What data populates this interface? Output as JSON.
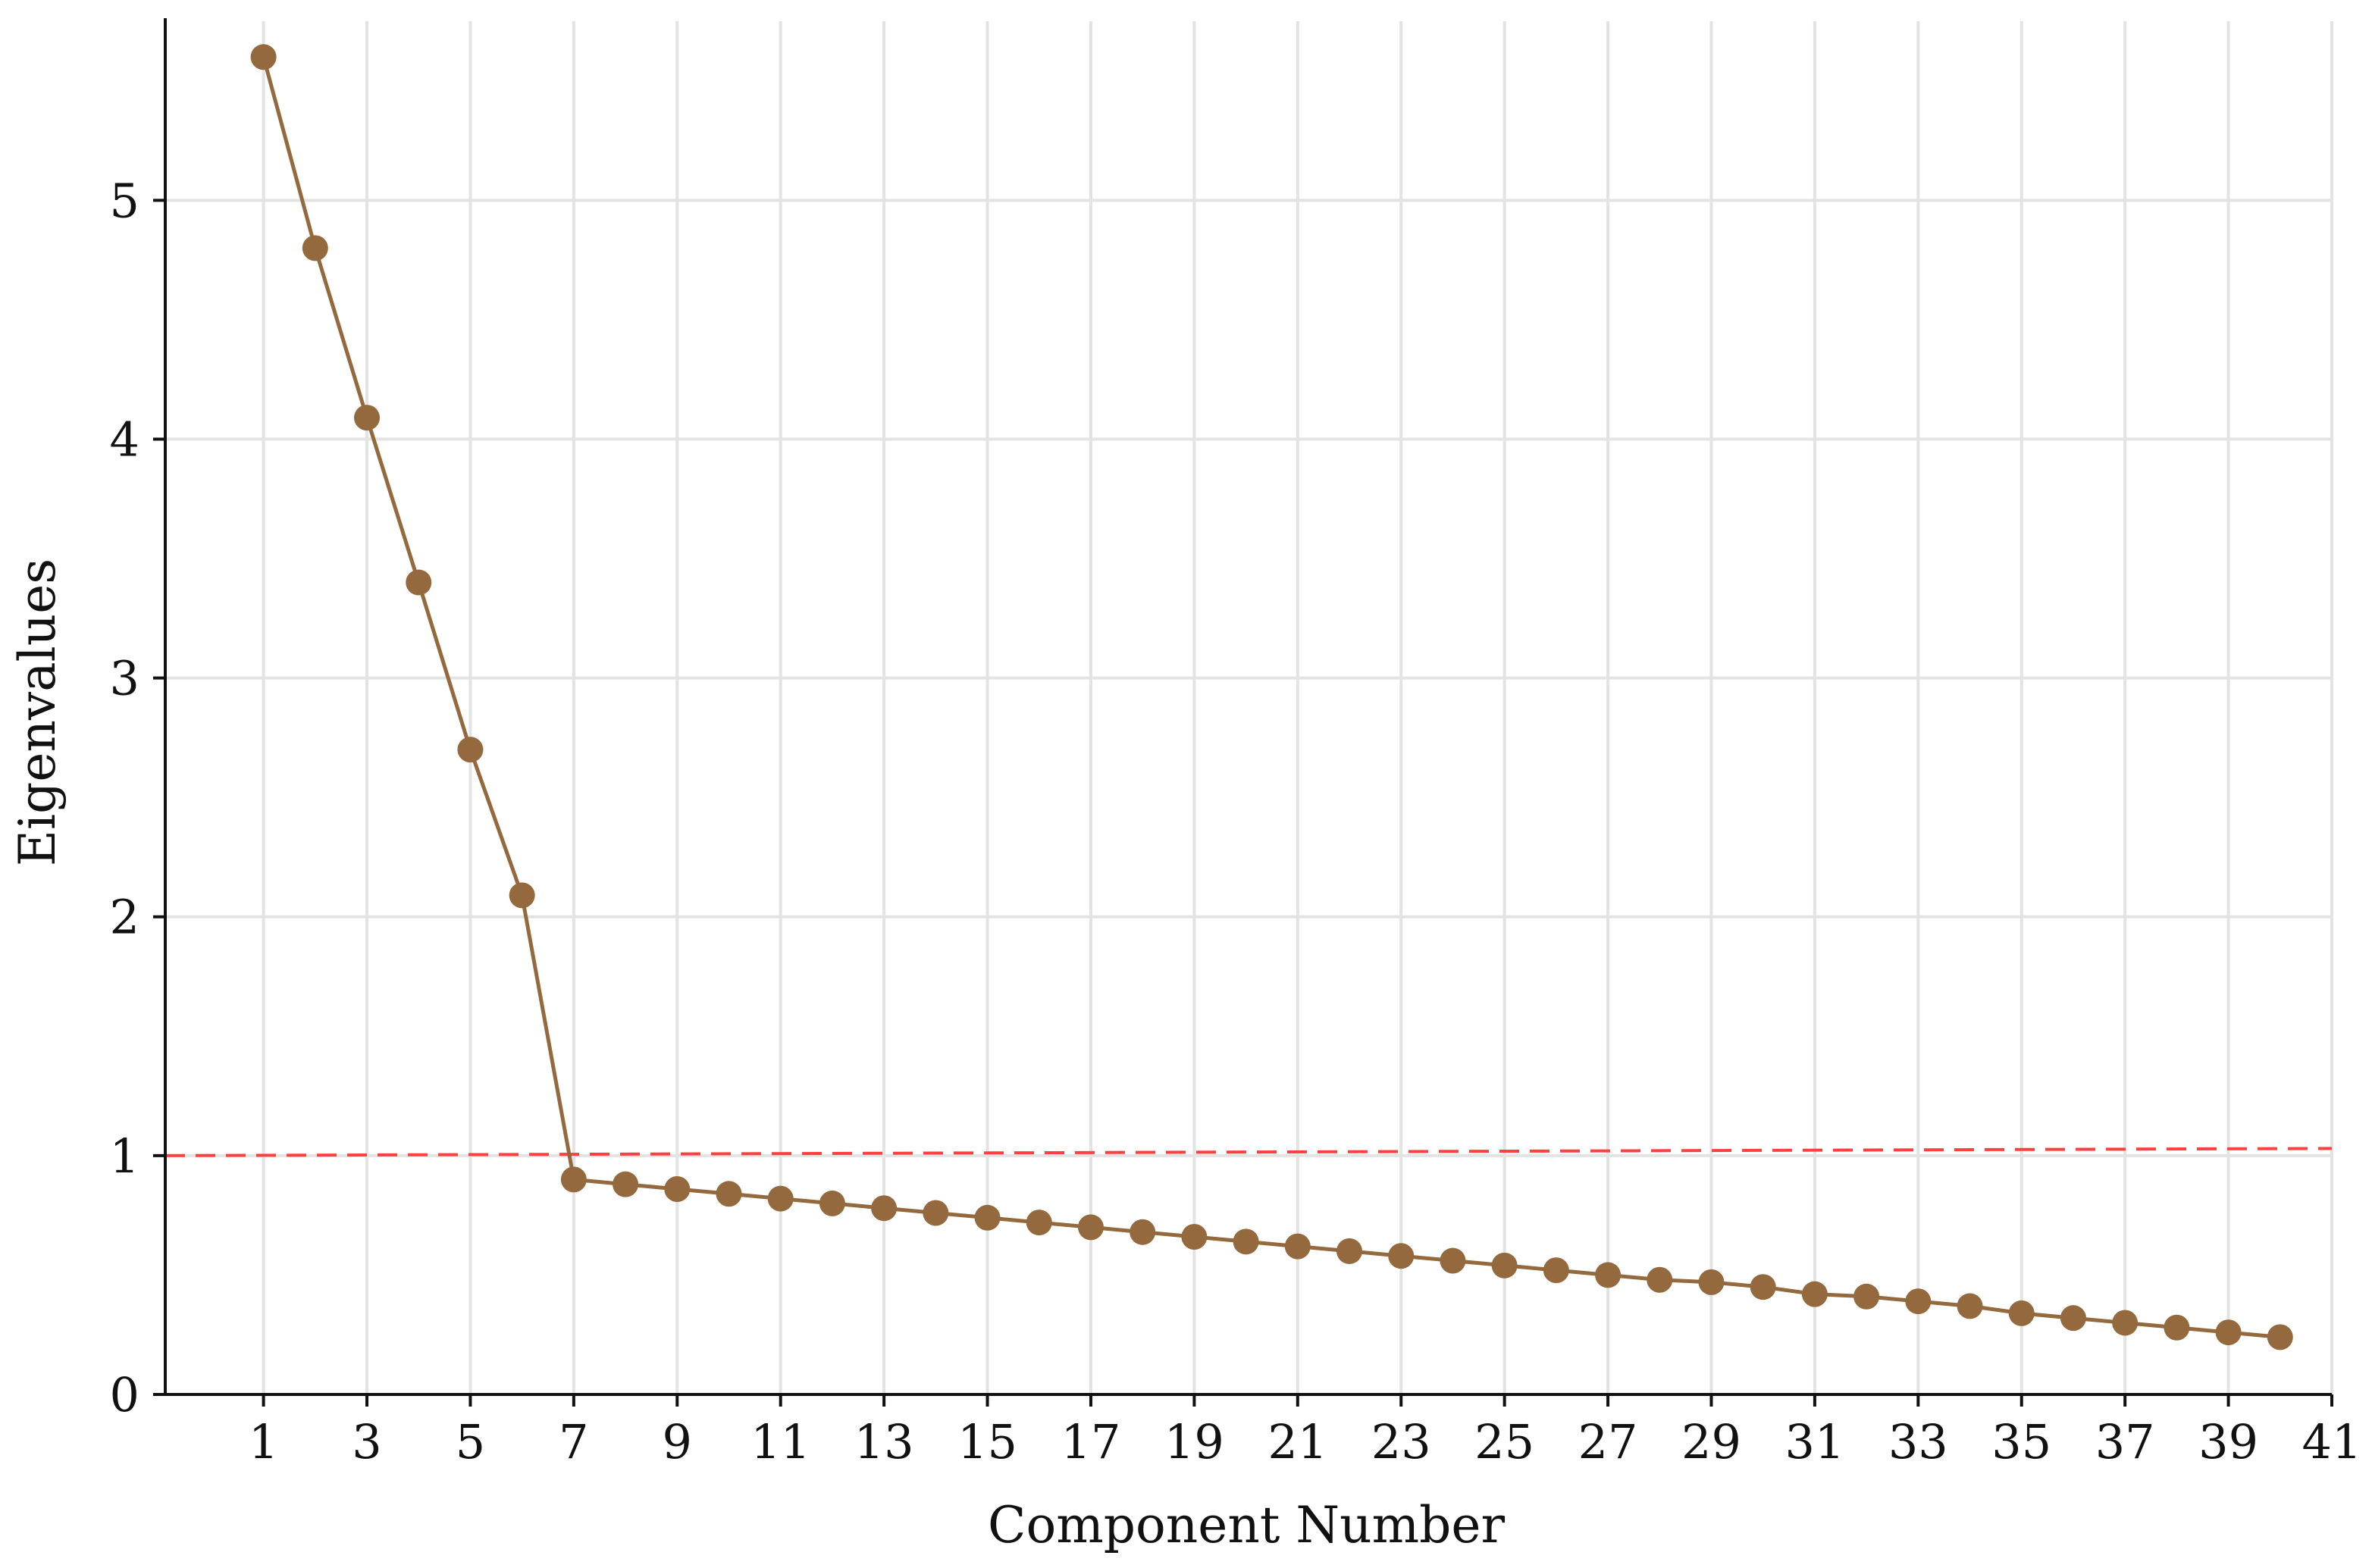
{
  "chart_data": {
    "type": "line",
    "title": "",
    "xlabel": "Component Number",
    "ylabel": "Eigenvalues",
    "xlim": [
      -0.9,
      41
    ],
    "ylim": [
      0,
      5.75
    ],
    "xticks": [
      1,
      3,
      5,
      7,
      9,
      11,
      13,
      15,
      17,
      19,
      21,
      23,
      25,
      27,
      29,
      31,
      33,
      35,
      37,
      39,
      41
    ],
    "yticks": [
      0,
      1,
      2,
      3,
      4,
      5
    ],
    "grid": true,
    "series": [
      {
        "x": [
          1,
          2,
          3,
          4,
          5,
          6,
          7,
          8,
          9,
          10,
          11,
          12,
          13,
          14,
          15,
          16,
          17,
          18,
          19,
          20,
          21,
          22,
          23,
          24,
          25,
          26,
          27,
          28,
          29,
          30,
          31,
          32,
          33,
          34,
          35,
          36,
          37,
          38,
          39,
          40
        ],
        "values": [
          5.6,
          4.8,
          4.09,
          3.4,
          2.7,
          2.09,
          0.9,
          0.88,
          0.86,
          0.84,
          0.82,
          0.8,
          0.78,
          0.76,
          0.74,
          0.72,
          0.7,
          0.68,
          0.66,
          0.64,
          0.62,
          0.6,
          0.58,
          0.56,
          0.54,
          0.52,
          0.5,
          0.48,
          0.47,
          0.45,
          0.42,
          0.41,
          0.39,
          0.37,
          0.34,
          0.32,
          0.3,
          0.28,
          0.26,
          0.24
        ],
        "color": "#94693D"
      }
    ],
    "reference_line": {
      "x": [
        -0.9,
        41
      ],
      "y": [
        1.0,
        1.03
      ],
      "color": "#ff4040",
      "style": "dashed"
    }
  },
  "colors": {
    "grid": "#e3e3e3",
    "axis": "#111111",
    "series": "#94693D",
    "reference": "#ff4040"
  }
}
